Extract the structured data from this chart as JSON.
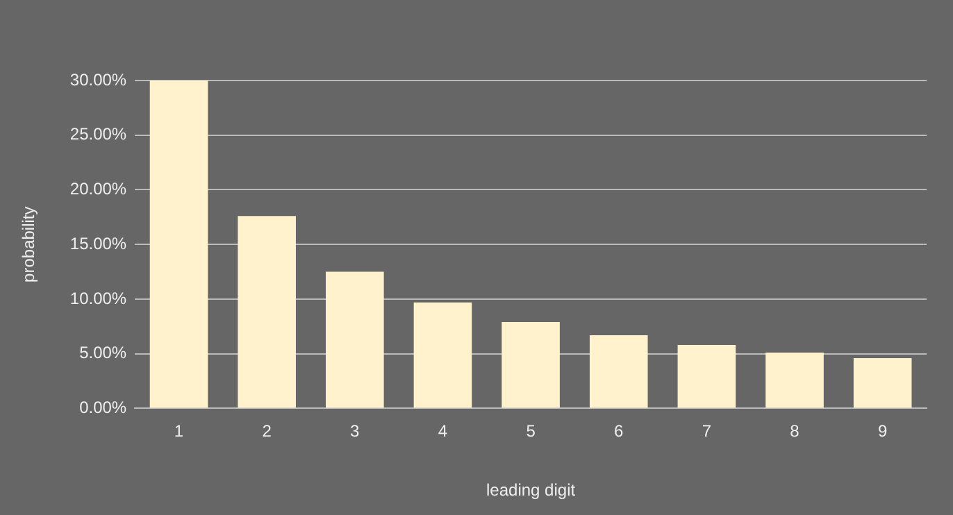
{
  "chart_data": {
    "type": "bar",
    "xlabel": "leading digit",
    "ylabel": "probability",
    "categories": [
      "1",
      "2",
      "3",
      "4",
      "5",
      "6",
      "7",
      "8",
      "9"
    ],
    "values": [
      30,
      17.6,
      12.5,
      9.7,
      7.9,
      6.7,
      5.8,
      5.1,
      4.6
    ],
    "color": "#fff2cc",
    "ylim": [
      0,
      30
    ],
    "yticks": [
      {
        "value": 0,
        "label": "0.00%"
      },
      {
        "value": 5,
        "label": "5.00%"
      },
      {
        "value": 10,
        "label": "10.00%"
      },
      {
        "value": 15,
        "label": "15.00%"
      },
      {
        "value": 20,
        "label": "20.00%"
      },
      {
        "value": 25,
        "label": "25.00%"
      },
      {
        "value": 30,
        "label": "30.00%"
      }
    ],
    "grid": "y",
    "legend": false
  }
}
